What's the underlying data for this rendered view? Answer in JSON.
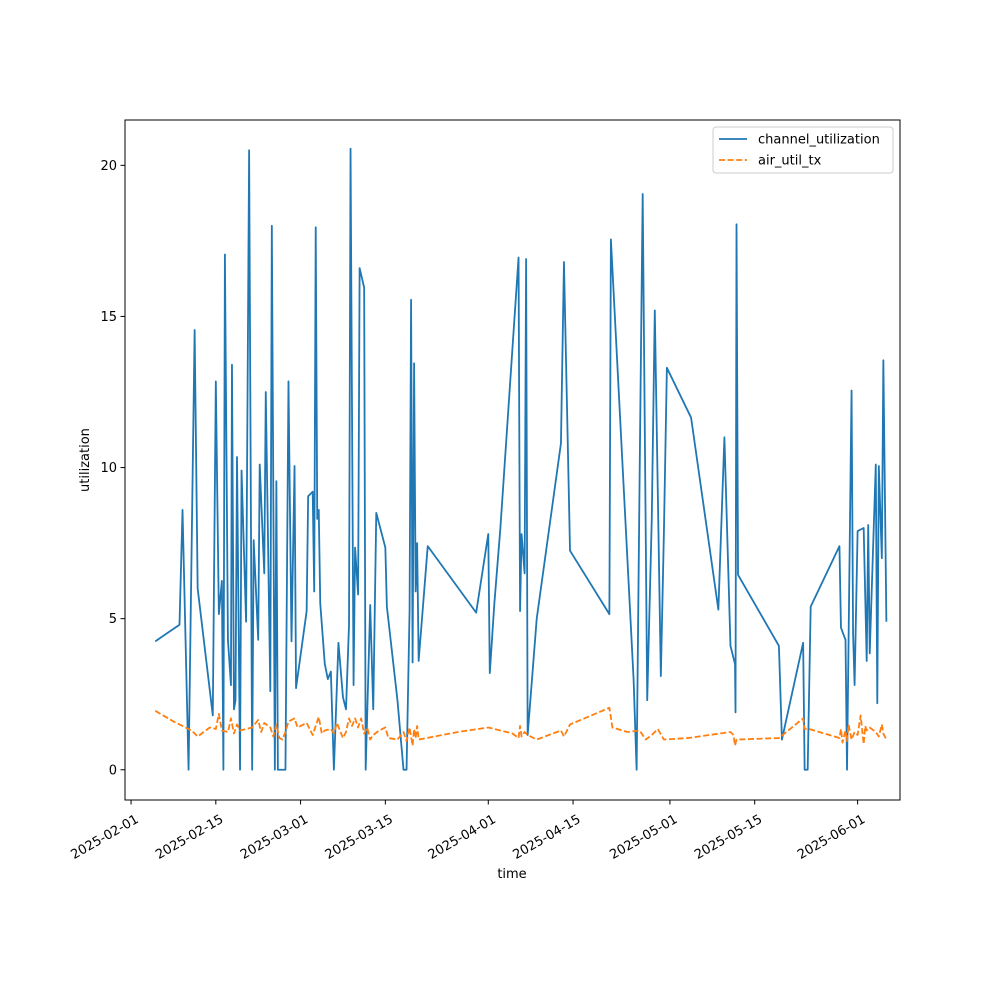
{
  "chart_data": {
    "type": "line",
    "xlabel": "time",
    "ylabel": "utilization",
    "x_axis_type": "date",
    "xlim": [
      "2025-01-31",
      "2025-06-08"
    ],
    "ylim": [
      -1,
      21.5
    ],
    "x_ticks": [
      "2025-02-01",
      "2025-02-15",
      "2025-03-01",
      "2025-03-15",
      "2025-04-01",
      "2025-04-15",
      "2025-05-01",
      "2025-05-15",
      "2025-06-01"
    ],
    "y_ticks": [
      0,
      5,
      10,
      15,
      20
    ],
    "grid": false,
    "legend_position": "top-right",
    "series": [
      {
        "name": "channel_utilization",
        "color": "#1f77b4",
        "line_style": "solid",
        "points": [
          [
            "2025-02-05",
            4.25
          ],
          [
            "2025-02-09",
            4.8
          ],
          [
            "2025-02-09T12:00",
            8.6
          ],
          [
            "2025-02-10T12:00",
            0
          ],
          [
            "2025-02-11T12:00",
            14.55
          ],
          [
            "2025-02-12",
            6
          ],
          [
            "2025-02-14T12:00",
            1.8
          ],
          [
            "2025-02-15",
            12.85
          ],
          [
            "2025-02-15T12:00",
            5.15
          ],
          [
            "2025-02-16",
            6.25
          ],
          [
            "2025-02-16T06:00",
            0
          ],
          [
            "2025-02-16T12:00",
            17.05
          ],
          [
            "2025-02-17",
            4.3
          ],
          [
            "2025-02-17T12:00",
            2.8
          ],
          [
            "2025-02-17T16:00",
            13.4
          ],
          [
            "2025-02-18",
            2
          ],
          [
            "2025-02-18T06:00",
            2.3
          ],
          [
            "2025-02-18T12:00",
            10.35
          ],
          [
            "2025-02-19",
            0
          ],
          [
            "2025-02-19T06:00",
            9.9
          ],
          [
            "2025-02-20",
            4.9
          ],
          [
            "2025-02-20T12:00",
            20.5
          ],
          [
            "2025-02-21",
            0
          ],
          [
            "2025-02-21T06:00",
            7.6
          ],
          [
            "2025-02-22",
            4.3
          ],
          [
            "2025-02-22T06:00",
            10.1
          ],
          [
            "2025-02-23",
            6.5
          ],
          [
            "2025-02-23T06:00",
            12.5
          ],
          [
            "2025-02-24",
            2.6
          ],
          [
            "2025-02-24T06:00",
            18.0
          ],
          [
            "2025-02-24T18:00",
            0
          ],
          [
            "2025-02-25",
            9.55
          ],
          [
            "2025-02-25T06:00",
            0
          ],
          [
            "2025-02-26T12:00",
            0
          ],
          [
            "2025-02-27",
            12.85
          ],
          [
            "2025-02-27T12:00",
            4.25
          ],
          [
            "2025-02-28",
            10.05
          ],
          [
            "2025-02-28T06:00",
            2.7
          ],
          [
            "2025-03-02",
            5.25
          ],
          [
            "2025-03-02T06:00",
            9.05
          ],
          [
            "2025-03-03",
            9.2
          ],
          [
            "2025-03-03T06:00",
            5.9
          ],
          [
            "2025-03-03T12:00",
            17.95
          ],
          [
            "2025-03-03T18:00",
            8.3
          ],
          [
            "2025-03-04",
            8.6
          ],
          [
            "2025-03-04T06:00",
            5.5
          ],
          [
            "2025-03-05",
            3.5
          ],
          [
            "2025-03-05T12:00",
            3.0
          ],
          [
            "2025-03-06",
            3.25
          ],
          [
            "2025-03-06T12:00",
            0
          ],
          [
            "2025-03-07T06:00",
            4.2
          ],
          [
            "2025-03-08",
            2.4
          ],
          [
            "2025-03-08T12:00",
            2.0
          ],
          [
            "2025-03-09",
            4.8
          ],
          [
            "2025-03-09T06:00",
            20.55
          ],
          [
            "2025-03-09T18:00",
            2.8
          ],
          [
            "2025-03-10",
            7.35
          ],
          [
            "2025-03-10T12:00",
            5.8
          ],
          [
            "2025-03-10T18:00",
            16.6
          ],
          [
            "2025-03-11T12:00",
            15.95
          ],
          [
            "2025-03-11T18:00",
            0
          ],
          [
            "2025-03-12T12:00",
            5.45
          ],
          [
            "2025-03-13",
            2.0
          ],
          [
            "2025-03-13T12:00",
            8.5
          ],
          [
            "2025-03-15",
            7.35
          ],
          [
            "2025-03-15T06:00",
            5.4
          ],
          [
            "2025-03-17",
            2.3
          ],
          [
            "2025-03-18",
            0
          ],
          [
            "2025-03-18T12:00",
            0
          ],
          [
            "2025-03-19",
            5.25
          ],
          [
            "2025-03-19T06:00",
            15.55
          ],
          [
            "2025-03-19T12:00",
            3.55
          ],
          [
            "2025-03-19T18:00",
            13.45
          ],
          [
            "2025-03-20",
            5.9
          ],
          [
            "2025-03-20T06:00",
            7.5
          ],
          [
            "2025-03-20T12:00",
            3.6
          ],
          [
            "2025-03-22",
            7.4
          ],
          [
            "2025-03-30",
            5.2
          ],
          [
            "2025-04-01",
            7.8
          ],
          [
            "2025-04-01T06:00",
            3.2
          ],
          [
            "2025-04-02",
            5.5
          ],
          [
            "2025-04-03",
            8.0
          ],
          [
            "2025-04-06",
            16.95
          ],
          [
            "2025-04-06T06:00",
            5.25
          ],
          [
            "2025-04-06T12:00",
            7.8
          ],
          [
            "2025-04-07",
            6.5
          ],
          [
            "2025-04-07T06:00",
            16.9
          ],
          [
            "2025-04-07T12:00",
            1.15
          ],
          [
            "2025-04-09",
            5.0
          ],
          [
            "2025-04-13",
            10.8
          ],
          [
            "2025-04-13T12:00",
            16.8
          ],
          [
            "2025-04-14T12:00",
            7.25
          ],
          [
            "2025-04-21",
            5.15
          ],
          [
            "2025-04-21T06:00",
            17.55
          ],
          [
            "2025-04-25",
            3.0
          ],
          [
            "2025-04-25T12:00",
            0
          ],
          [
            "2025-04-26",
            9.8
          ],
          [
            "2025-04-26T12:00",
            19.05
          ],
          [
            "2025-04-27T06:00",
            2.3
          ],
          [
            "2025-04-28",
            8.3
          ],
          [
            "2025-04-28T12:00",
            15.2
          ],
          [
            "2025-04-29T12:00",
            3.1
          ],
          [
            "2025-04-30",
            7.8
          ],
          [
            "2025-04-30T12:00",
            13.3
          ],
          [
            "2025-05-04T12:00",
            11.65
          ],
          [
            "2025-05-09",
            5.3
          ],
          [
            "2025-05-10",
            11.0
          ],
          [
            "2025-05-11",
            4.1
          ],
          [
            "2025-05-11T18:00",
            3.5
          ],
          [
            "2025-05-11T20:00",
            1.9
          ],
          [
            "2025-05-12",
            18.05
          ],
          [
            "2025-05-12T06:00",
            6.45
          ],
          [
            "2025-05-19",
            4.1
          ],
          [
            "2025-05-19T12:00",
            1.0
          ],
          [
            "2025-05-23",
            4.2
          ],
          [
            "2025-05-23T06:00",
            0
          ],
          [
            "2025-05-23T18:00",
            0
          ],
          [
            "2025-05-24T06:00",
            5.4
          ],
          [
            "2025-05-29",
            7.4
          ],
          [
            "2025-05-29T06:00",
            4.7
          ],
          [
            "2025-05-30",
            4.3
          ],
          [
            "2025-05-30T06:00",
            0
          ],
          [
            "2025-05-31",
            12.55
          ],
          [
            "2025-05-31T06:00",
            4.5
          ],
          [
            "2025-05-31T12:00",
            2.8
          ],
          [
            "2025-06-01",
            7.9
          ],
          [
            "2025-06-02",
            8.0
          ],
          [
            "2025-06-02T12:00",
            3.6
          ],
          [
            "2025-06-02T18:00",
            8.1
          ],
          [
            "2025-06-03",
            3.85
          ],
          [
            "2025-06-03T12:00",
            7.0
          ],
          [
            "2025-06-04",
            10.1
          ],
          [
            "2025-06-04T06:00",
            2.2
          ],
          [
            "2025-06-04T12:00",
            10.05
          ],
          [
            "2025-06-05",
            7.0
          ],
          [
            "2025-06-05T06:00",
            13.55
          ],
          [
            "2025-06-05T18:00",
            4.9
          ]
        ]
      },
      {
        "name": "air_util_tx",
        "color": "#ff7f0e",
        "line_style": "dashed",
        "points": [
          [
            "2025-02-05",
            1.95
          ],
          [
            "2025-02-08",
            1.6
          ],
          [
            "2025-02-11",
            1.3
          ],
          [
            "2025-02-12",
            1.1
          ],
          [
            "2025-02-14",
            1.4
          ],
          [
            "2025-02-15",
            1.35
          ],
          [
            "2025-02-15T12:00",
            1.85
          ],
          [
            "2025-02-16",
            1.3
          ],
          [
            "2025-02-17",
            1.25
          ],
          [
            "2025-02-17T12:00",
            1.7
          ],
          [
            "2025-02-18",
            1.2
          ],
          [
            "2025-02-18T12:00",
            1.5
          ],
          [
            "2025-02-19",
            1.3
          ],
          [
            "2025-02-20",
            1.35
          ],
          [
            "2025-02-21",
            1.4
          ],
          [
            "2025-02-22",
            1.65
          ],
          [
            "2025-02-22T12:00",
            1.25
          ],
          [
            "2025-02-23",
            1.55
          ],
          [
            "2025-02-24",
            1.4
          ],
          [
            "2025-02-24T12:00",
            1.1
          ],
          [
            "2025-02-25",
            1.5
          ],
          [
            "2025-02-25T12:00",
            1.05
          ],
          [
            "2025-02-26",
            1.0
          ],
          [
            "2025-02-26T12:00",
            1.25
          ],
          [
            "2025-02-27",
            1.6
          ],
          [
            "2025-02-28",
            1.7
          ],
          [
            "2025-02-28T12:00",
            1.4
          ],
          [
            "2025-03-02",
            1.55
          ],
          [
            "2025-03-03",
            1.15
          ],
          [
            "2025-03-03T12:00",
            1.45
          ],
          [
            "2025-03-04",
            1.75
          ],
          [
            "2025-03-04T12:00",
            1.2
          ],
          [
            "2025-03-05",
            1.3
          ],
          [
            "2025-03-06",
            1.35
          ],
          [
            "2025-03-06T12:00",
            1.2
          ],
          [
            "2025-03-07",
            1.55
          ],
          [
            "2025-03-08",
            1.05
          ],
          [
            "2025-03-08T12:00",
            1.25
          ],
          [
            "2025-03-09",
            1.7
          ],
          [
            "2025-03-09T12:00",
            1.45
          ],
          [
            "2025-03-10",
            1.7
          ],
          [
            "2025-03-10T12:00",
            1.4
          ],
          [
            "2025-03-11",
            1.7
          ],
          [
            "2025-03-11T12:00",
            1.2
          ],
          [
            "2025-03-12",
            1.4
          ],
          [
            "2025-03-12T12:00",
            1.0
          ],
          [
            "2025-03-13",
            1.15
          ],
          [
            "2025-03-14",
            1.3
          ],
          [
            "2025-03-15",
            1.4
          ],
          [
            "2025-03-15T12:00",
            1.05
          ],
          [
            "2025-03-17",
            1.0
          ],
          [
            "2025-03-18",
            1.25
          ],
          [
            "2025-03-18T12:00",
            0.95
          ],
          [
            "2025-03-19",
            1.4
          ],
          [
            "2025-03-19T06:00",
            1.1
          ],
          [
            "2025-03-19T12:00",
            0.8
          ],
          [
            "2025-03-19T18:00",
            1.35
          ],
          [
            "2025-03-20",
            1.05
          ],
          [
            "2025-03-20T06:00",
            1.45
          ],
          [
            "2025-03-20T12:00",
            1.0
          ],
          [
            "2025-03-27",
            1.25
          ],
          [
            "2025-04-01",
            1.4
          ],
          [
            "2025-04-05",
            1.2
          ],
          [
            "2025-04-06",
            1.05
          ],
          [
            "2025-04-06T06:00",
            1.45
          ],
          [
            "2025-04-06T12:00",
            1.1
          ],
          [
            "2025-04-07",
            1.25
          ],
          [
            "2025-04-07T12:00",
            1.15
          ],
          [
            "2025-04-09",
            1.0
          ],
          [
            "2025-04-13",
            1.3
          ],
          [
            "2025-04-13T12:00",
            1.1
          ],
          [
            "2025-04-14T12:00",
            1.5
          ],
          [
            "2025-04-21",
            2.05
          ],
          [
            "2025-04-21T12:00",
            1.4
          ],
          [
            "2025-04-24",
            1.25
          ],
          [
            "2025-04-26",
            1.3
          ],
          [
            "2025-04-27",
            1.0
          ],
          [
            "2025-04-28",
            1.15
          ],
          [
            "2025-04-29",
            1.35
          ],
          [
            "2025-04-30",
            1.0
          ],
          [
            "2025-05-04",
            1.05
          ],
          [
            "2025-05-11",
            1.25
          ],
          [
            "2025-05-11T12:00",
            1.15
          ],
          [
            "2025-05-11T18:00",
            0.8
          ],
          [
            "2025-05-12",
            1.0
          ],
          [
            "2025-05-19",
            1.05
          ],
          [
            "2025-05-23",
            1.7
          ],
          [
            "2025-05-23T06:00",
            1.35
          ],
          [
            "2025-05-24",
            1.35
          ],
          [
            "2025-05-29",
            1.05
          ],
          [
            "2025-05-29T06:00",
            1.35
          ],
          [
            "2025-05-29T12:00",
            0.9
          ],
          [
            "2025-05-30",
            1.3
          ],
          [
            "2025-05-30T06:00",
            0.95
          ],
          [
            "2025-05-30T12:00",
            1.5
          ],
          [
            "2025-05-31",
            1.0
          ],
          [
            "2025-05-31T12:00",
            1.25
          ],
          [
            "2025-06-01",
            1.15
          ],
          [
            "2025-06-01T12:00",
            1.8
          ],
          [
            "2025-06-02",
            0.85
          ],
          [
            "2025-06-02T06:00",
            1.45
          ],
          [
            "2025-06-02T12:00",
            1.3
          ],
          [
            "2025-06-03",
            1.4
          ],
          [
            "2025-06-04",
            1.25
          ],
          [
            "2025-06-04T12:00",
            1.1
          ],
          [
            "2025-06-05",
            1.5
          ],
          [
            "2025-06-05T06:00",
            1.2
          ],
          [
            "2025-06-05T18:00",
            1.0
          ]
        ]
      }
    ]
  }
}
